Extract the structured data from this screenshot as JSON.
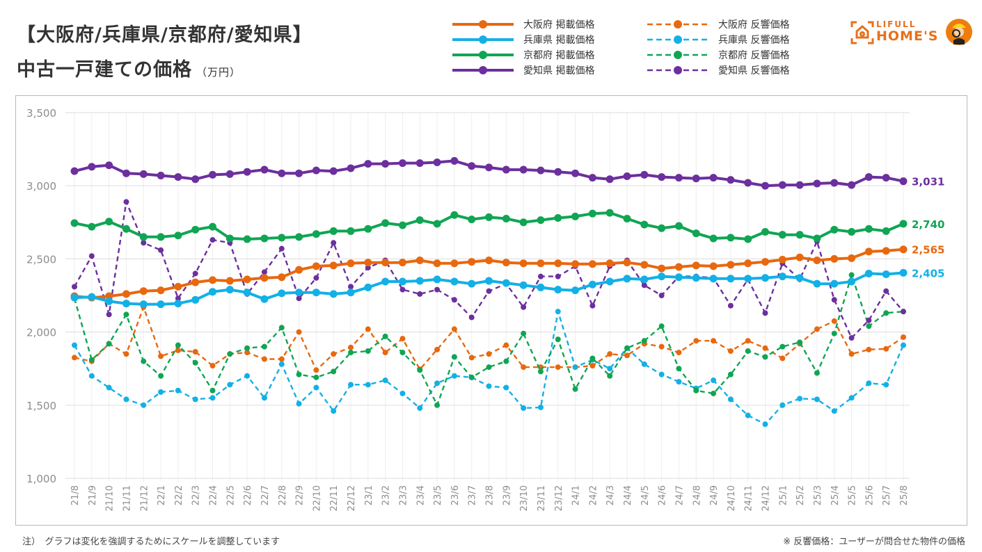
{
  "header": {
    "title_line1": "【大阪府/兵庫県/京都府/愛知県】",
    "title_line2": "中古一戸建ての価格",
    "unit": "（万円）"
  },
  "logo": {
    "line1": "LIFULL",
    "line2": "HOME'S",
    "brand_color": "#e8701a"
  },
  "footer": {
    "note_left": "注）　グラフは変化を強調するためにスケールを調整しています",
    "note_right": "※ 反響価格：ユーザーが問合せた物件の価格"
  },
  "chart_data": {
    "type": "line",
    "title": "【大阪府/兵庫県/京都府/愛知県】中古一戸建ての価格",
    "ylabel": "万円",
    "xlabel": "",
    "ylim": [
      1000,
      3500
    ],
    "yticks": [
      1000,
      1500,
      2000,
      2500,
      3000,
      3500
    ],
    "ytick_labels": [
      "1,000",
      "1,500",
      "2,000",
      "2,500",
      "3,000",
      "3,500"
    ],
    "grid": true,
    "legend_position": "top-right",
    "x": [
      "21/8",
      "21/9",
      "21/10",
      "21/11",
      "21/12",
      "22/1",
      "22/2",
      "22/3",
      "22/4",
      "22/5",
      "22/6",
      "22/7",
      "22/8",
      "22/9",
      "22/10",
      "22/11",
      "22/12",
      "23/1",
      "23/2",
      "23/3",
      "23/4",
      "23/5",
      "23/6",
      "23/7",
      "23/8",
      "23/9",
      "23/10",
      "23/11",
      "23/12",
      "24/1",
      "24/2",
      "24/3",
      "24/4",
      "24/5",
      "24/6",
      "24/7",
      "24/8",
      "24/9",
      "24/10",
      "24/11",
      "24/12",
      "25/1",
      "25/2",
      "25/3",
      "25/4",
      "25/5",
      "25/6",
      "25/7",
      "25/8"
    ],
    "series": [
      {
        "name": "大阪府 掲載価格",
        "style": "solid",
        "color": "#e8680f",
        "end_label": "2,565",
        "values": [
          2245,
          2235,
          2245,
          2260,
          2280,
          2285,
          2310,
          2340,
          2355,
          2350,
          2360,
          2370,
          2375,
          2425,
          2450,
          2455,
          2470,
          2475,
          2475,
          2475,
          2490,
          2470,
          2470,
          2480,
          2490,
          2475,
          2470,
          2470,
          2470,
          2465,
          2465,
          2470,
          2475,
          2460,
          2435,
          2445,
          2455,
          2450,
          2460,
          2470,
          2480,
          2495,
          2510,
          2490,
          2500,
          2505,
          2550,
          2555,
          2565
        ]
      },
      {
        "name": "兵庫県 掲載価格",
        "style": "solid",
        "color": "#13b0e6",
        "end_label": "2,405",
        "values": [
          2235,
          2240,
          2210,
          2195,
          2190,
          2190,
          2195,
          2220,
          2275,
          2290,
          2270,
          2225,
          2265,
          2270,
          2270,
          2260,
          2270,
          2305,
          2345,
          2345,
          2350,
          2360,
          2345,
          2330,
          2350,
          2335,
          2320,
          2305,
          2290,
          2285,
          2325,
          2345,
          2365,
          2360,
          2380,
          2375,
          2370,
          2365,
          2365,
          2365,
          2370,
          2380,
          2370,
          2330,
          2330,
          2345,
          2400,
          2395,
          2405
        ]
      },
      {
        "name": "京都府 掲載価格",
        "style": "solid",
        "color": "#10a553",
        "end_label": "2,740",
        "values": [
          2745,
          2720,
          2755,
          2705,
          2650,
          2650,
          2660,
          2700,
          2720,
          2640,
          2635,
          2640,
          2645,
          2650,
          2670,
          2690,
          2690,
          2705,
          2745,
          2730,
          2765,
          2740,
          2800,
          2770,
          2785,
          2775,
          2750,
          2765,
          2780,
          2790,
          2810,
          2815,
          2775,
          2735,
          2710,
          2725,
          2675,
          2640,
          2645,
          2635,
          2685,
          2665,
          2665,
          2640,
          2700,
          2685,
          2705,
          2690,
          2740
        ]
      },
      {
        "name": "愛知県 掲載価格",
        "style": "solid",
        "color": "#6c2f9e",
        "end_label": "3,031",
        "values": [
          3100,
          3130,
          3140,
          3085,
          3080,
          3070,
          3060,
          3045,
          3075,
          3080,
          3095,
          3110,
          3085,
          3085,
          3105,
          3100,
          3120,
          3150,
          3150,
          3155,
          3155,
          3160,
          3170,
          3135,
          3125,
          3110,
          3110,
          3105,
          3095,
          3085,
          3055,
          3045,
          3065,
          3075,
          3060,
          3055,
          3050,
          3055,
          3040,
          3020,
          3000,
          3005,
          3005,
          3015,
          3020,
          3005,
          3060,
          3055,
          3031
        ]
      },
      {
        "name": "大阪府 反響価格",
        "style": "dashed",
        "color": "#e8680f",
        "values": [
          1825,
          1800,
          1920,
          1850,
          2170,
          1835,
          1875,
          1865,
          1770,
          1850,
          1860,
          1815,
          1815,
          2000,
          1740,
          1850,
          1895,
          2020,
          1860,
          1955,
          1745,
          1880,
          2020,
          1825,
          1850,
          1910,
          1760,
          1760,
          1760,
          1760,
          1770,
          1850,
          1840,
          1920,
          1900,
          1860,
          1940,
          1940,
          1870,
          1940,
          1890,
          1820,
          1920,
          2020,
          2075,
          1850,
          1880,
          1885,
          1965
        ]
      },
      {
        "name": "兵庫県 反響価格",
        "style": "dashed",
        "color": "#13b0e6",
        "values": [
          1910,
          1700,
          1620,
          1540,
          1500,
          1590,
          1600,
          1540,
          1550,
          1640,
          1700,
          1550,
          1780,
          1510,
          1620,
          1460,
          1640,
          1640,
          1670,
          1580,
          1480,
          1650,
          1700,
          1690,
          1630,
          1620,
          1480,
          1485,
          2140,
          1760,
          1810,
          1750,
          1890,
          1780,
          1710,
          1660,
          1615,
          1670,
          1540,
          1430,
          1370,
          1500,
          1545,
          1540,
          1460,
          1550,
          1650,
          1640,
          1910
        ]
      },
      {
        "name": "京都府 反響価格",
        "style": "dashed",
        "color": "#10a553",
        "values": [
          2230,
          1810,
          1920,
          2120,
          1800,
          1700,
          1910,
          1790,
          1600,
          1850,
          1890,
          1900,
          2030,
          1710,
          1690,
          1730,
          1860,
          1870,
          1970,
          1860,
          1740,
          1500,
          1830,
          1690,
          1760,
          1800,
          1990,
          1730,
          1950,
          1610,
          1820,
          1700,
          1890,
          1940,
          2040,
          1750,
          1600,
          1580,
          1710,
          1870,
          1830,
          1900,
          1930,
          1720,
          1990,
          2390,
          2040,
          2130,
          2140
        ]
      },
      {
        "name": "愛知県 反響価格",
        "style": "dashed",
        "color": "#6c2f9e",
        "values": [
          2310,
          2520,
          2120,
          2890,
          2610,
          2560,
          2230,
          2400,
          2630,
          2610,
          2260,
          2410,
          2570,
          2230,
          2370,
          2610,
          2310,
          2440,
          2490,
          2290,
          2260,
          2290,
          2220,
          2100,
          2280,
          2330,
          2170,
          2380,
          2380,
          2450,
          2180,
          2450,
          2490,
          2320,
          2250,
          2380,
          2380,
          2370,
          2180,
          2360,
          2130,
          2470,
          2360,
          2620,
          2220,
          1960,
          2080,
          2280,
          2140
        ]
      }
    ]
  }
}
